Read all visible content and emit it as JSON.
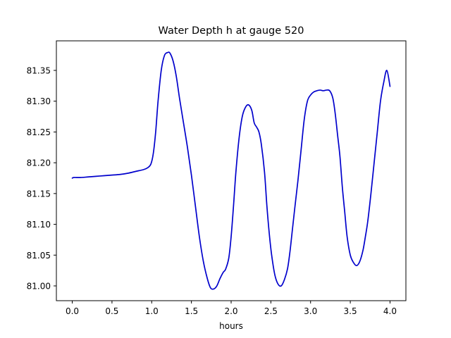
{
  "chart_data": {
    "type": "line",
    "title": "Water Depth h at gauge 520",
    "xlabel": "hours",
    "ylabel": "",
    "xlim": [
      -0.2,
      4.2
    ],
    "ylim": [
      80.976,
      81.398
    ],
    "xticks": [
      0.0,
      0.5,
      1.0,
      1.5,
      2.0,
      2.5,
      3.0,
      3.5,
      4.0
    ],
    "xtick_labels": [
      "0.0",
      "0.5",
      "1.0",
      "1.5",
      "2.0",
      "2.5",
      "3.0",
      "3.5",
      "4.0"
    ],
    "yticks": [
      81.0,
      81.05,
      81.1,
      81.15,
      81.2,
      81.25,
      81.3,
      81.35
    ],
    "ytick_labels": [
      "81.00",
      "81.05",
      "81.10",
      "81.15",
      "81.20",
      "81.25",
      "81.30",
      "81.35"
    ],
    "grid": false,
    "series": [
      {
        "color": "#0000cc",
        "x": [
          0.0,
          0.02,
          0.1,
          0.2,
          0.3,
          0.4,
          0.5,
          0.6,
          0.7,
          0.8,
          0.9,
          0.95,
          0.99,
          1.02,
          1.05,
          1.08,
          1.12,
          1.16,
          1.2,
          1.23,
          1.27,
          1.31,
          1.35,
          1.4,
          1.45,
          1.5,
          1.55,
          1.6,
          1.65,
          1.7,
          1.74,
          1.78,
          1.82,
          1.86,
          1.9,
          1.93,
          1.97,
          2.0,
          2.03,
          2.06,
          2.1,
          2.14,
          2.18,
          2.22,
          2.26,
          2.29,
          2.32,
          2.35,
          2.38,
          2.42,
          2.45,
          2.48,
          2.51,
          2.55,
          2.59,
          2.63,
          2.67,
          2.71,
          2.74,
          2.77,
          2.8,
          2.84,
          2.88,
          2.92,
          2.96,
          3.0,
          3.04,
          3.08,
          3.12,
          3.16,
          3.2,
          3.24,
          3.28,
          3.31,
          3.34,
          3.37,
          3.4,
          3.43,
          3.46,
          3.5,
          3.54,
          3.58,
          3.62,
          3.66,
          3.69,
          3.72,
          3.76,
          3.8,
          3.84,
          3.88,
          3.92,
          3.96,
          4.0
        ],
        "y": [
          81.175,
          81.176,
          81.176,
          81.177,
          81.178,
          81.179,
          81.18,
          81.181,
          81.183,
          81.186,
          81.189,
          81.192,
          81.198,
          81.215,
          81.25,
          81.3,
          81.35,
          81.374,
          81.379,
          81.378,
          81.365,
          81.34,
          81.305,
          81.265,
          81.225,
          81.18,
          81.13,
          81.08,
          81.04,
          81.012,
          80.997,
          80.995,
          81.0,
          81.012,
          81.022,
          81.027,
          81.045,
          81.08,
          81.13,
          81.185,
          81.24,
          81.275,
          81.29,
          81.294,
          81.285,
          81.265,
          81.258,
          81.25,
          81.23,
          81.185,
          81.13,
          81.085,
          81.05,
          81.018,
          81.003,
          81.0,
          81.01,
          81.028,
          81.055,
          81.09,
          81.125,
          81.17,
          81.22,
          81.27,
          81.3,
          81.31,
          81.315,
          81.317,
          81.318,
          81.317,
          81.318,
          81.317,
          81.305,
          81.28,
          81.245,
          81.21,
          81.16,
          81.12,
          81.08,
          81.05,
          81.038,
          81.033,
          81.04,
          81.058,
          81.08,
          81.105,
          81.15,
          81.2,
          81.25,
          81.3,
          81.33,
          81.35,
          81.324
        ]
      }
    ]
  }
}
